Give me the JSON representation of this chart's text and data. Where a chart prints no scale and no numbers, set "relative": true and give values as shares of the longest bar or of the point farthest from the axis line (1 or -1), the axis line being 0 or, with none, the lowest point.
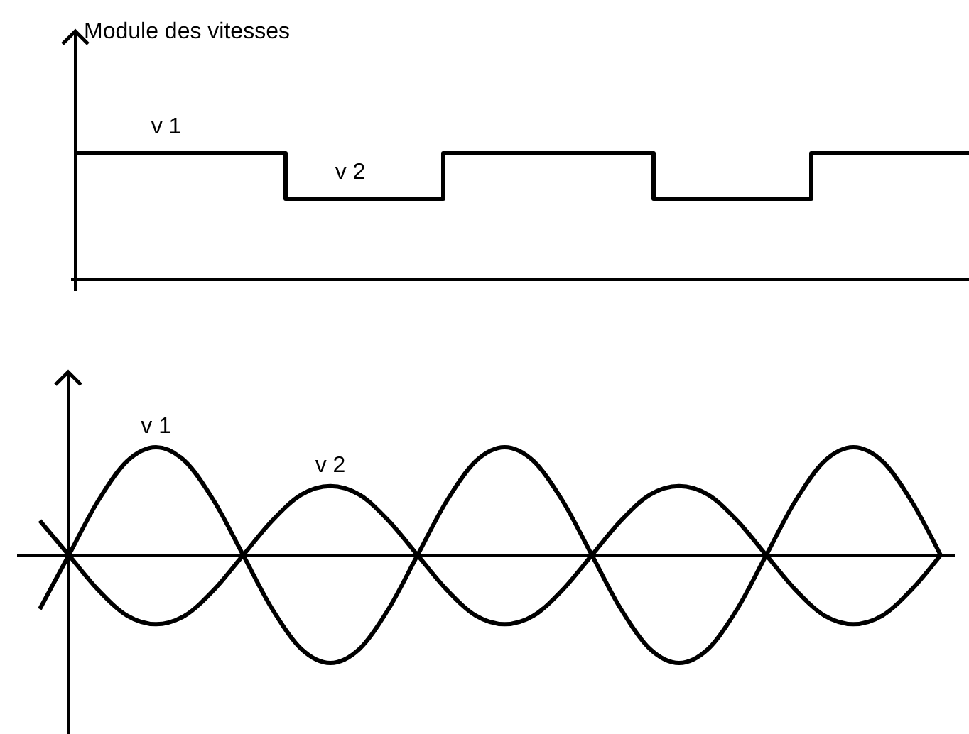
{
  "chart_data": [
    {
      "type": "step",
      "ylabel": "Module des vitesses",
      "relative": true,
      "color": "#000000",
      "categories": [
        null,
        null,
        null,
        null,
        null,
        null,
        null,
        null,
        null,
        null,
        null,
        null,
        null,
        null,
        null,
        null,
        null,
        null
      ],
      "values": [
        1,
        1,
        1,
        1,
        0.64,
        0.64,
        0.64,
        1,
        1,
        1,
        1,
        0.64,
        0.64,
        0.64,
        1,
        1,
        1,
        1
      ],
      "annotations": [
        {
          "text": "v 1",
          "y": 1
        },
        {
          "text": "v 2",
          "y": 0.64
        }
      ]
    },
    {
      "type": "line",
      "relative": true,
      "categories": [
        null,
        null,
        null,
        null,
        null,
        null,
        null,
        null,
        null,
        null,
        null,
        null,
        null,
        null,
        null,
        null,
        null,
        null,
        null,
        null,
        null,
        null,
        null,
        null,
        null,
        null,
        null,
        null,
        null,
        null,
        null,
        null
      ],
      "series": [
        {
          "name": "v 1",
          "color": "#000000",
          "values": [
            -0.5,
            0,
            0.5,
            0.87,
            1,
            0.87,
            0.5,
            0,
            -0.5,
            -0.87,
            -1,
            -0.87,
            -0.5,
            0,
            0.5,
            0.87,
            1,
            0.87,
            0.5,
            0,
            -0.5,
            -0.87,
            -1,
            -0.87,
            -0.5,
            0,
            0.5,
            0.87,
            1,
            0.87,
            0.5,
            0
          ]
        },
        {
          "name": "v 2",
          "color": "#000000",
          "values": [
            0.32,
            0,
            -0.32,
            -0.56,
            -0.64,
            -0.56,
            -0.32,
            0,
            0.32,
            0.56,
            0.64,
            0.56,
            0.32,
            0,
            -0.32,
            -0.56,
            -0.64,
            -0.56,
            -0.32,
            0,
            0.32,
            0.56,
            0.64,
            0.56,
            0.32,
            0,
            -0.32,
            -0.56,
            -0.64,
            -0.56,
            -0.32,
            0
          ]
        }
      ]
    }
  ]
}
